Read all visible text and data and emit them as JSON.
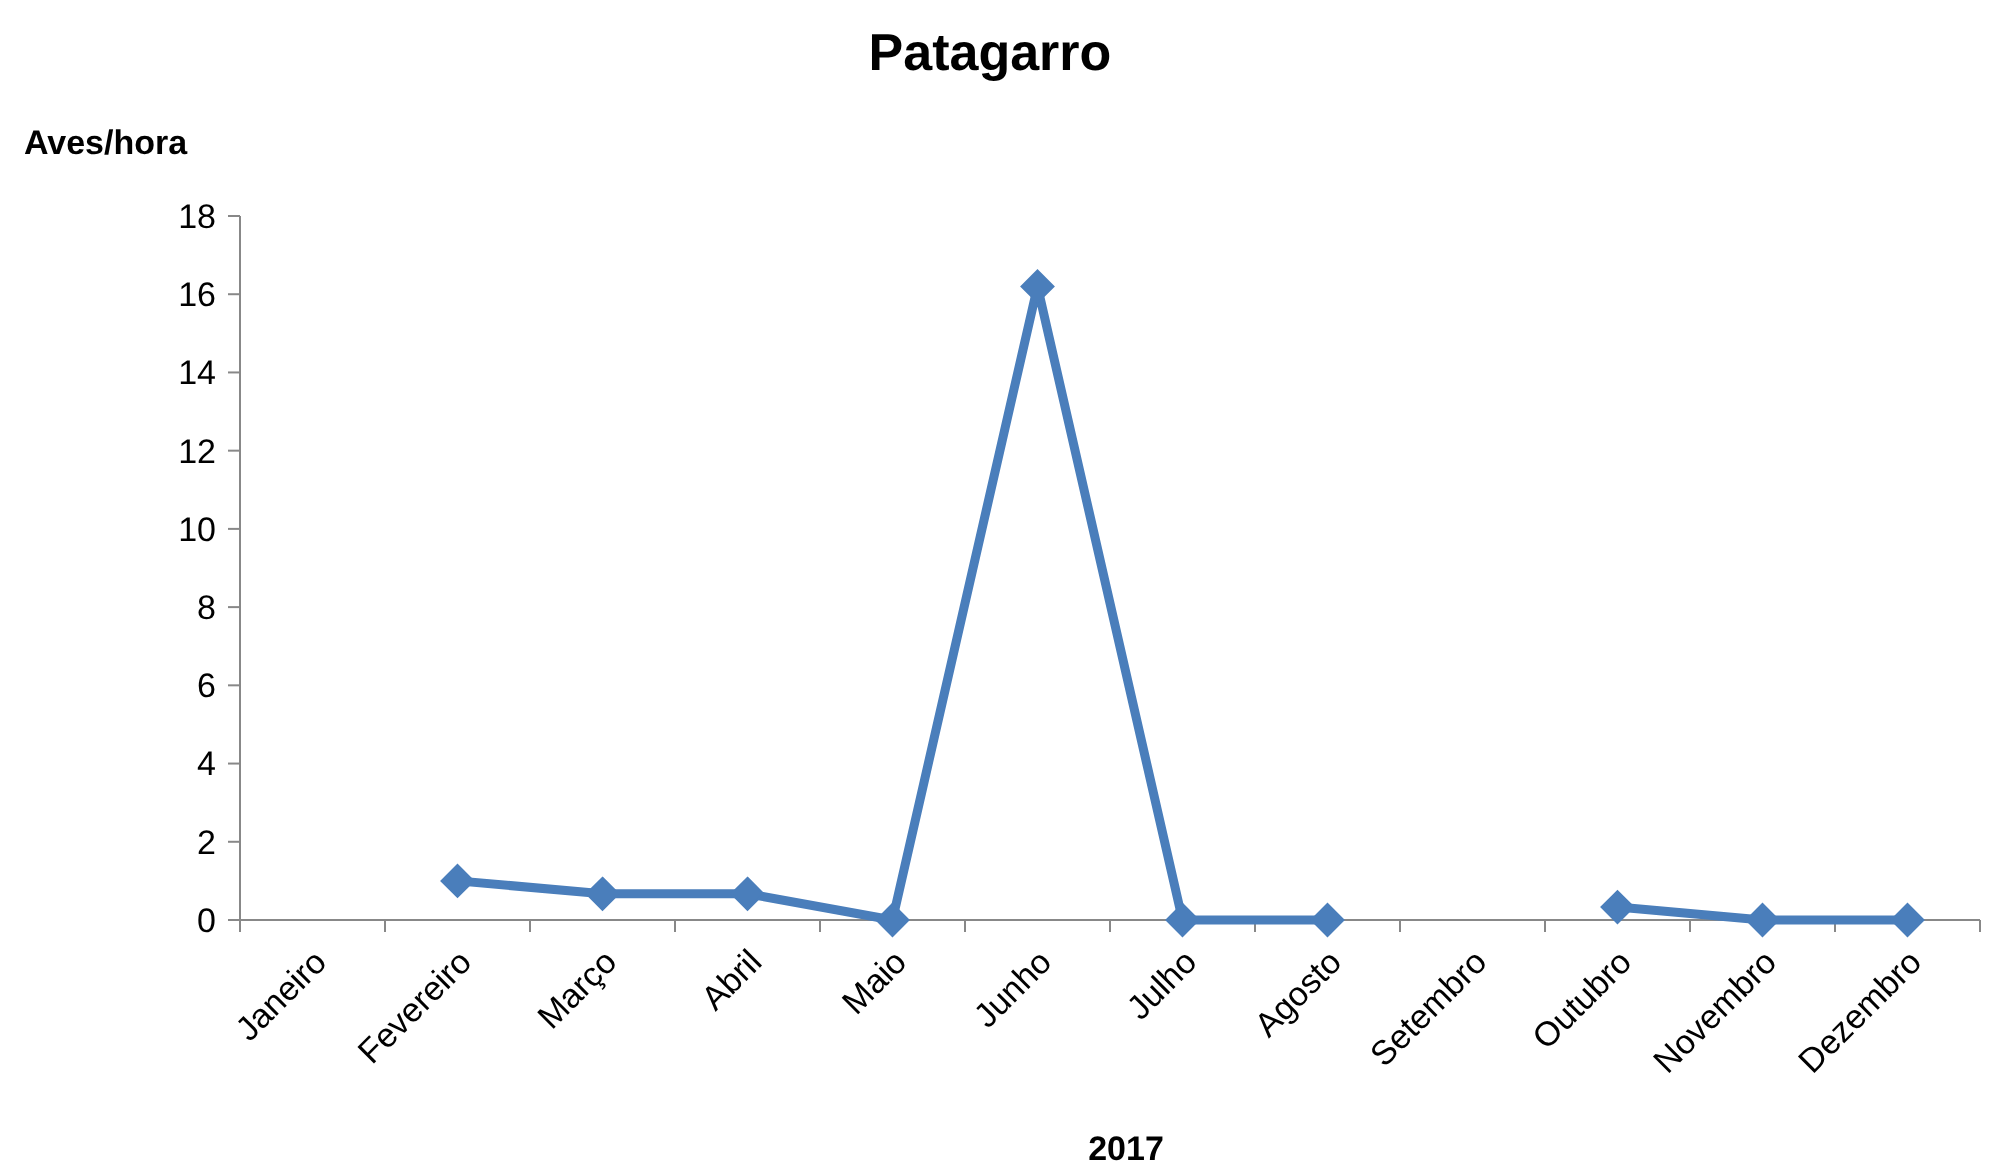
{
  "chart_data": {
    "type": "line",
    "title": "Patagarro",
    "ylabel": "Aves/hora",
    "xlabel": "2017",
    "categories": [
      "Janeiro",
      "Fevereiro",
      "Março",
      "Abril",
      "Maio",
      "Junho",
      "Julho",
      "Agosto",
      "Setembro",
      "Outubro",
      "Novembro",
      "Dezembro"
    ],
    "series": [
      {
        "color": "#4a7ebb",
        "values": [
          null,
          1.0,
          0.67,
          0.67,
          0,
          16.2,
          0,
          0,
          null,
          0.33,
          0,
          0
        ]
      }
    ],
    "ylim": [
      0,
      18
    ],
    "yticks": [
      0,
      2,
      4,
      6,
      8,
      10,
      12,
      14,
      16,
      18
    ],
    "grid": false,
    "marker": "diamond",
    "line_style": "solid"
  }
}
